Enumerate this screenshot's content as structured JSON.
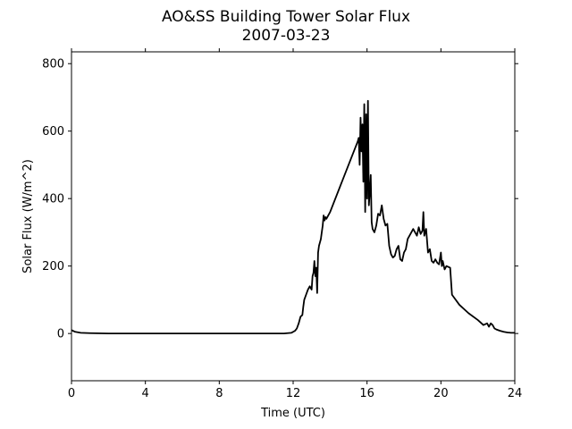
{
  "chart_data": {
    "type": "line",
    "title": "AO&SS Building Tower Solar Flux",
    "subtitle": "2007-03-23",
    "xlabel": "Time (UTC)",
    "ylabel": "Solar Flux (W/m^2)",
    "xlim": [
      0,
      24
    ],
    "ylim": [
      -140,
      835
    ],
    "xticks": [
      0,
      4,
      8,
      12,
      16,
      20,
      24
    ],
    "yticks": [
      0,
      200,
      400,
      600,
      800
    ],
    "grid": false,
    "line_color": "#000000",
    "series": [
      {
        "x": [
          0.0,
          0.2,
          0.5,
          1.0,
          2.0,
          4.0,
          6.0,
          8.0,
          10.0,
          11.5,
          11.9,
          12.1,
          12.2,
          12.3,
          12.4,
          12.5,
          12.55,
          12.6,
          12.7,
          12.8,
          12.9,
          13.0,
          13.05,
          13.1,
          13.15,
          13.2,
          13.25,
          13.3,
          13.35,
          13.4,
          13.45,
          13.5,
          13.55,
          13.6,
          13.65,
          13.7,
          13.75,
          13.8,
          13.85,
          13.9,
          14.0,
          15.5,
          15.55,
          15.6,
          15.65,
          15.7,
          15.75,
          15.8,
          15.85,
          15.9,
          15.95,
          16.0,
          16.05,
          16.1,
          16.15,
          16.2,
          16.25,
          16.3,
          16.4,
          16.5,
          16.6,
          16.7,
          16.8,
          16.9,
          17.0,
          17.1,
          17.2,
          17.3,
          17.4,
          17.5,
          17.6,
          17.7,
          17.8,
          17.9,
          18.0,
          18.1,
          18.2,
          18.3,
          18.4,
          18.5,
          18.6,
          18.7,
          18.8,
          18.9,
          19.0,
          19.05,
          19.1,
          19.2,
          19.3,
          19.4,
          19.5,
          19.6,
          19.7,
          19.8,
          19.9,
          20.0,
          20.05,
          20.1,
          20.2,
          20.3,
          20.5,
          20.6,
          21.0,
          21.5,
          22.0,
          22.3,
          22.5,
          22.6,
          22.7,
          22.8,
          22.9,
          23.0,
          23.2,
          23.4,
          23.6,
          23.8,
          24.0
        ],
        "y": [
          10,
          5,
          2,
          1,
          0,
          0,
          0,
          0,
          0,
          0,
          2,
          8,
          15,
          30,
          50,
          55,
          80,
          100,
          115,
          130,
          140,
          130,
          170,
          180,
          215,
          170,
          195,
          120,
          240,
          260,
          270,
          280,
          300,
          320,
          350,
          335,
          345,
          340,
          345,
          350,
          360,
          570,
          580,
          500,
          640,
          540,
          620,
          450,
          680,
          360,
          650,
          400,
          690,
          380,
          420,
          470,
          330,
          310,
          300,
          320,
          355,
          350,
          380,
          340,
          320,
          325,
          260,
          235,
          225,
          230,
          250,
          260,
          220,
          215,
          240,
          250,
          280,
          290,
          300,
          310,
          300,
          290,
          315,
          295,
          305,
          360,
          290,
          310,
          240,
          250,
          215,
          210,
          220,
          210,
          205,
          240,
          200,
          215,
          190,
          200,
          195,
          115,
          85,
          60,
          40,
          25,
          30,
          20,
          30,
          25,
          15,
          12,
          8,
          5,
          3,
          2,
          2
        ]
      }
    ]
  }
}
